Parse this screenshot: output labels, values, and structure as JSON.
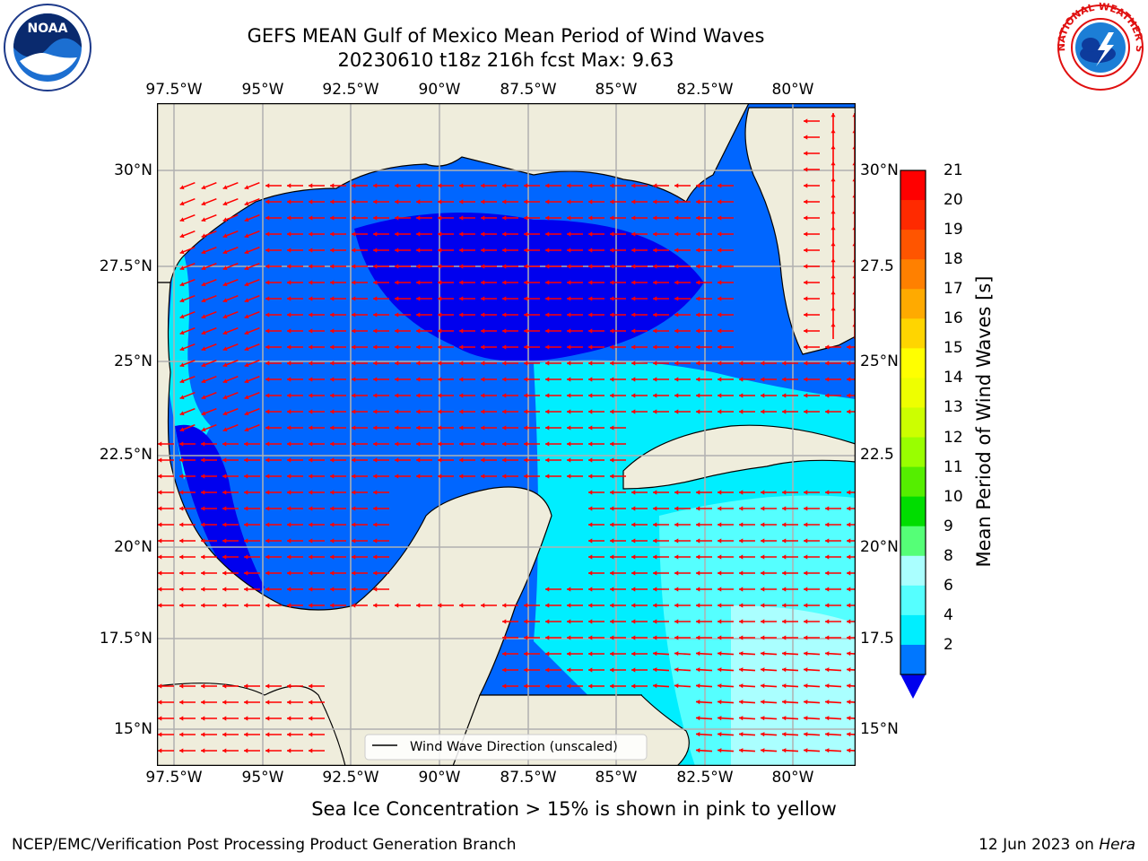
{
  "title": {
    "line1": "GEFS MEAN Gulf of Mexico Mean Period of Wind Waves",
    "line2": "20230610 t18z 216h fcst   Max: 9.63"
  },
  "map": {
    "lon_labels": [
      "97.5°W",
      "95°W",
      "92.5°W",
      "90°W",
      "87.5°W",
      "85°W",
      "82.5°W",
      "80°W"
    ],
    "lat_labels_left": [
      "30°N",
      "27.5°N",
      "25°N",
      "22.5°N",
      "20°N",
      "17.5°N",
      "15°N"
    ],
    "lat_labels_right": [
      "30°N",
      "27.5",
      "25°N",
      "22.5",
      "20°N",
      "17.5",
      "15°N"
    ],
    "legend_label": "Wind Wave Direction (unscaled)",
    "arrow_color": "#ff0000",
    "land_color": "#efeddc",
    "field_colors": {
      "2-4": "#0066ff",
      "4-6": "#00eeff",
      "below": "#0000ee"
    }
  },
  "colorbar": {
    "label": "Mean Period of Wind Waves [s]",
    "ticks": [
      "21",
      "20",
      "19",
      "18",
      "17",
      "16",
      "15",
      "14",
      "13",
      "12",
      "11",
      "10",
      "9",
      "8",
      "6",
      "4",
      "2"
    ],
    "colors": [
      "#ff0000",
      "#ff2a00",
      "#ff5500",
      "#ff8000",
      "#ffaa00",
      "#ffd500",
      "#ffff00",
      "#eeff00",
      "#ccff00",
      "#99ff00",
      "#55ee00",
      "#00dd00",
      "#55ff77",
      "#aaffff",
      "#55ffff",
      "#00eeff",
      "#0077ff"
    ],
    "extend_color": "#0000ee"
  },
  "sea_ice_note": "Sea Ice Concentration > 15% is shown in pink to yellow",
  "footer": {
    "left": "NCEP/EMC/Verification Post Processing Product Generation Branch",
    "right_prefix": "12 Jun 2023 on ",
    "right_host": "Hera"
  },
  "logos": {
    "noaa_text": "NOAA",
    "nws_text": "NATIONAL WEATHER SERVICE"
  }
}
